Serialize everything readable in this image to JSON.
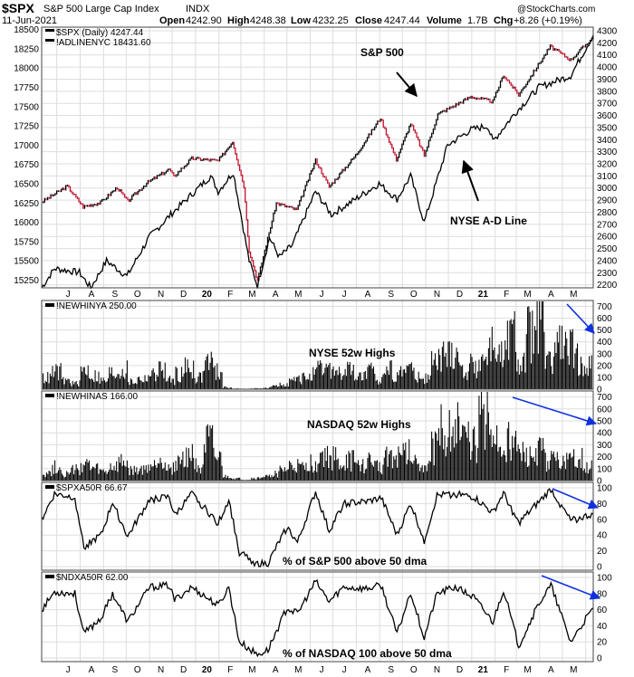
{
  "header": {
    "symbol": "$SPX",
    "name": "S&P 500 Large Cap Index",
    "exchange": "INDX",
    "date": "11-Jun-2021",
    "open_label": "Open",
    "open": "4242.90",
    "high_label": "High",
    "high": "4248.38",
    "low_label": "Low",
    "low": "4232.25",
    "close_label": "Close",
    "close": "4247.44",
    "volume_label": "Volume",
    "volume": "1.7B",
    "chg_label": "Chg",
    "chg": "+8.26 (+0.19%)",
    "watermark": "@StockCharts.com"
  },
  "colors": {
    "up": "#000000",
    "down": "#c0102c",
    "arrow_blue": "#1030e0",
    "frame": "#444444",
    "grid": "#dddddd"
  },
  "x_axis": {
    "labels": [
      "J",
      "A",
      "S",
      "O",
      "N",
      "D",
      "20",
      "F",
      "M",
      "A",
      "M",
      "J",
      "J",
      "A",
      "S",
      "O",
      "N",
      "D",
      "21",
      "F",
      "M",
      "A",
      "M",
      "J"
    ]
  },
  "chart_data": [
    {
      "type": "line",
      "panel": "price",
      "series": [
        {
          "name": "$SPX (Daily) 4247.44",
          "axis": "right",
          "points": [
            [
              "2019-06-11",
              2885
            ],
            [
              "2019-07-15",
              3015
            ],
            [
              "2019-08-05",
              2845
            ],
            [
              "2019-08-28",
              2880
            ],
            [
              "2019-09-19",
              3005
            ],
            [
              "2019-10-03",
              2890
            ],
            [
              "2019-10-28",
              3040
            ],
            [
              "2019-11-27",
              3155
            ],
            [
              "2019-12-03",
              3095
            ],
            [
              "2019-12-27",
              3245
            ],
            [
              "2020-01-31",
              3225
            ],
            [
              "2020-02-19",
              3385
            ],
            [
              "2020-03-05",
              3015
            ],
            [
              "2020-03-12",
              2480
            ],
            [
              "2020-03-23",
              2237
            ],
            [
              "2020-04-17",
              2875
            ],
            [
              "2020-05-14",
              2820
            ],
            [
              "2020-06-08",
              3230
            ],
            [
              "2020-06-26",
              3010
            ],
            [
              "2020-07-31",
              3270
            ],
            [
              "2020-09-02",
              3580
            ],
            [
              "2020-09-23",
              3235
            ],
            [
              "2020-10-12",
              3535
            ],
            [
              "2020-10-30",
              3270
            ],
            [
              "2020-11-17",
              3610
            ],
            [
              "2020-12-31",
              3755
            ],
            [
              "2021-01-29",
              3715
            ],
            [
              "2021-02-12",
              3935
            ],
            [
              "2021-03-04",
              3770
            ],
            [
              "2021-04-15",
              4170
            ],
            [
              "2021-05-12",
              4060
            ],
            [
              "2021-06-11",
              4247
            ]
          ]
        },
        {
          "name": "!ADLINENYC 18431.60",
          "axis": "left",
          "points": [
            [
              "2019-06-11",
              15150
            ],
            [
              "2019-06-28",
              15400
            ],
            [
              "2019-07-31",
              15350
            ],
            [
              "2019-08-15",
              15150
            ],
            [
              "2019-09-05",
              15500
            ],
            [
              "2019-10-02",
              15300
            ],
            [
              "2019-10-31",
              15800
            ],
            [
              "2019-11-29",
              16100
            ],
            [
              "2019-12-31",
              16400
            ],
            [
              "2020-01-21",
              16600
            ],
            [
              "2020-01-31",
              16400
            ],
            [
              "2020-02-20",
              16650
            ],
            [
              "2020-03-12",
              15500
            ],
            [
              "2020-03-23",
              15180
            ],
            [
              "2020-04-08",
              15800
            ],
            [
              "2020-04-21",
              15550
            ],
            [
              "2020-05-08",
              15700
            ],
            [
              "2020-06-08",
              16400
            ],
            [
              "2020-06-29",
              16100
            ],
            [
              "2020-07-31",
              16300
            ],
            [
              "2020-08-31",
              16500
            ],
            [
              "2020-09-24",
              16300
            ],
            [
              "2020-10-12",
              16600
            ],
            [
              "2020-10-30",
              16000
            ],
            [
              "2020-11-30",
              17000
            ],
            [
              "2020-12-31",
              17200
            ],
            [
              "2021-01-22",
              17250
            ],
            [
              "2021-01-29",
              17050
            ],
            [
              "2021-02-26",
              17400
            ],
            [
              "2021-03-31",
              17750
            ],
            [
              "2021-05-12",
              17900
            ],
            [
              "2021-06-11",
              18430
            ]
          ]
        }
      ],
      "y_left": {
        "ticks": [
          "18500",
          "18250",
          "18000",
          "17750",
          "17500",
          "17250",
          "17000",
          "16750",
          "16500",
          "16250",
          "16000",
          "15750",
          "15500",
          "15250"
        ]
      },
      "y_right": {
        "ticks": [
          "4300",
          "4200",
          "4100",
          "4000",
          "3900",
          "3800",
          "3700",
          "3600",
          "3500",
          "3400",
          "3300",
          "3200",
          "3100",
          "3000",
          "2900",
          "2800",
          "2700",
          "2600",
          "2500",
          "2400",
          "2300",
          "2200"
        ]
      },
      "annotations": [
        "S&P 500",
        "NYSE A-D Line"
      ]
    },
    {
      "type": "bar",
      "panel": "nyse_highs",
      "series": [
        {
          "name": "!NEWHINYA 250.00",
          "values": [
            120,
            180,
            90,
            60,
            200,
            140,
            90,
            170,
            200,
            80,
            110,
            150,
            210,
            95,
            160,
            230,
            130,
            300,
            180,
            20,
            6,
            4,
            8,
            12,
            30,
            60,
            90,
            120,
            150,
            200,
            210,
            160,
            200,
            130,
            180,
            110,
            220,
            170,
            240,
            150,
            120,
            280,
            350,
            400,
            190,
            250,
            320,
            450,
            330,
            550,
            280,
            600,
            720,
            260,
            480,
            410,
            320,
            250
          ]
        }
      ],
      "y": {
        "ticks": [
          "700",
          "600",
          "500",
          "400",
          "300",
          "200",
          "100",
          "0"
        ],
        "max": 750
      },
      "annotation": "NYSE 52w Highs"
    },
    {
      "type": "bar",
      "panel": "nasdaq_highs",
      "series": [
        {
          "name": "!NEWHINAS 166.00",
          "values": [
            80,
            140,
            70,
            110,
            160,
            120,
            90,
            140,
            180,
            100,
            110,
            150,
            230,
            130,
            200,
            280,
            160,
            380,
            220,
            40,
            20,
            10,
            25,
            40,
            70,
            110,
            150,
            130,
            180,
            260,
            240,
            170,
            210,
            160,
            200,
            150,
            280,
            230,
            300,
            210,
            170,
            360,
            520,
            600,
            420,
            380,
            700,
            460,
            330,
            400,
            260,
            230,
            290,
            210,
            270,
            190,
            230,
            166
          ]
        }
      ],
      "y": {
        "ticks": [
          "700",
          "600",
          "500",
          "400",
          "300",
          "200",
          "100",
          "0"
        ],
        "max": 750
      },
      "annotation": "NASDAQ 52w Highs"
    },
    {
      "type": "line",
      "panel": "spxa50r",
      "series": [
        {
          "name": "$SPXA50R 66.67",
          "points": [
            [
              "2019-06-11",
              60
            ],
            [
              "2019-06-28",
              92
            ],
            [
              "2019-07-25",
              88
            ],
            [
              "2019-08-06",
              25
            ],
            [
              "2019-08-29",
              40
            ],
            [
              "2019-09-13",
              82
            ],
            [
              "2019-10-03",
              38
            ],
            [
              "2019-11-01",
              85
            ],
            [
              "2019-11-27",
              88
            ],
            [
              "2019-12-04",
              65
            ],
            [
              "2019-12-27",
              92
            ],
            [
              "2020-01-31",
              55
            ],
            [
              "2020-02-14",
              85
            ],
            [
              "2020-02-28",
              18
            ],
            [
              "2020-03-23",
              3
            ],
            [
              "2020-04-06",
              4
            ],
            [
              "2020-05-01",
              50
            ],
            [
              "2020-05-15",
              30
            ],
            [
              "2020-06-08",
              95
            ],
            [
              "2020-06-26",
              45
            ],
            [
              "2020-07-15",
              80
            ],
            [
              "2020-08-14",
              82
            ],
            [
              "2020-09-03",
              87
            ],
            [
              "2020-09-24",
              40
            ],
            [
              "2020-10-12",
              80
            ],
            [
              "2020-10-30",
              33
            ],
            [
              "2020-11-16",
              90
            ],
            [
              "2020-12-10",
              92
            ],
            [
              "2021-01-04",
              88
            ],
            [
              "2021-01-29",
              68
            ],
            [
              "2021-02-12",
              93
            ],
            [
              "2021-03-04",
              55
            ],
            [
              "2021-03-31",
              82
            ],
            [
              "2021-04-16",
              98
            ],
            [
              "2021-05-12",
              58
            ],
            [
              "2021-06-11",
              66.67
            ]
          ]
        }
      ],
      "y": {
        "ticks": [
          "100",
          "80",
          "60",
          "40",
          "20",
          "0"
        ]
      },
      "annotation": "% of S&P 500 above 50 dma"
    },
    {
      "type": "line",
      "panel": "ndxa50r",
      "series": [
        {
          "name": "$NDXA50R 62.00",
          "points": [
            [
              "2019-06-11",
              60
            ],
            [
              "2019-06-28",
              82
            ],
            [
              "2019-07-25",
              80
            ],
            [
              "2019-08-06",
              30
            ],
            [
              "2019-08-29",
              50
            ],
            [
              "2019-09-13",
              80
            ],
            [
              "2019-10-03",
              45
            ],
            [
              "2019-11-01",
              88
            ],
            [
              "2019-11-27",
              90
            ],
            [
              "2019-12-04",
              72
            ],
            [
              "2019-12-27",
              88
            ],
            [
              "2020-01-31",
              65
            ],
            [
              "2020-02-14",
              88
            ],
            [
              "2020-02-28",
              20
            ],
            [
              "2020-03-23",
              4
            ],
            [
              "2020-04-06",
              10
            ],
            [
              "2020-05-01",
              62
            ],
            [
              "2020-05-15",
              55
            ],
            [
              "2020-06-08",
              95
            ],
            [
              "2020-06-26",
              70
            ],
            [
              "2020-07-15",
              88
            ],
            [
              "2020-08-14",
              86
            ],
            [
              "2020-09-03",
              90
            ],
            [
              "2020-09-24",
              30
            ],
            [
              "2020-10-12",
              82
            ],
            [
              "2020-10-30",
              25
            ],
            [
              "2020-11-16",
              80
            ],
            [
              "2020-12-10",
              88
            ],
            [
              "2021-01-04",
              75
            ],
            [
              "2021-01-29",
              45
            ],
            [
              "2021-02-12",
              85
            ],
            [
              "2021-03-04",
              15
            ],
            [
              "2021-03-31",
              68
            ],
            [
              "2021-04-16",
              90
            ],
            [
              "2021-05-12",
              20
            ],
            [
              "2021-06-11",
              62
            ]
          ]
        }
      ],
      "y": {
        "ticks": [
          "100",
          "80",
          "60",
          "40",
          "20",
          "0"
        ]
      },
      "annotation": "% of NASDAQ 100 above 50 dma"
    }
  ]
}
